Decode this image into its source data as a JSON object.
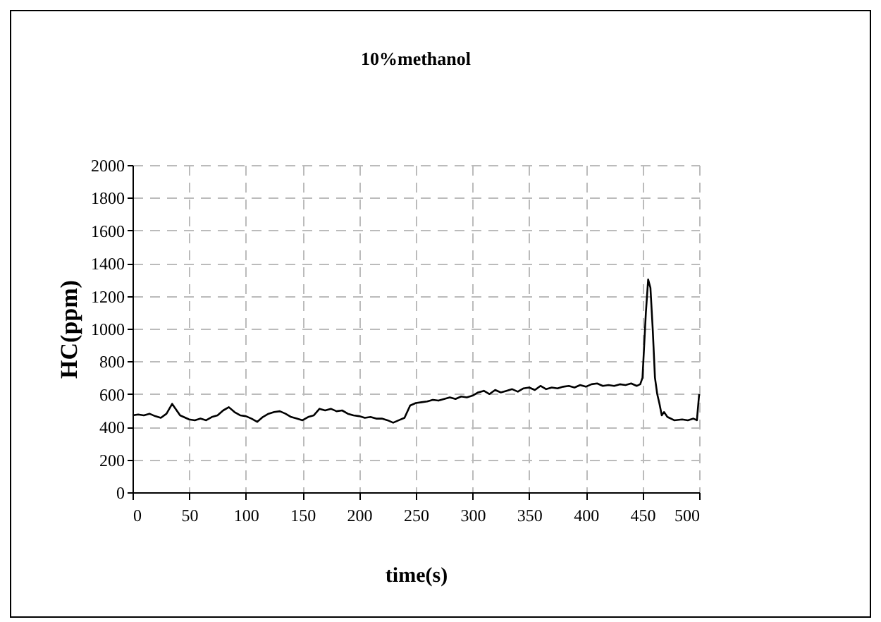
{
  "chart_data": {
    "type": "line",
    "title": "10%methanol",
    "xlabel": "time(s)",
    "ylabel": "HC(ppm)",
    "xlim": [
      0,
      500
    ],
    "xticks": [
      0,
      50,
      100,
      150,
      200,
      250,
      300,
      350,
      400,
      450,
      500
    ],
    "ylim": [
      0,
      2000
    ],
    "yticks": [
      0,
      200,
      400,
      600,
      800,
      1000,
      1200,
      1400,
      1600,
      1800,
      2000
    ],
    "grid": true,
    "legend": false,
    "marker": "none",
    "line_style": "solid",
    "series": [
      {
        "color": "#000000",
        "x": [
          0,
          5,
          10,
          15,
          20,
          25,
          30,
          35,
          38,
          42,
          50,
          55,
          60,
          65,
          70,
          75,
          80,
          85,
          90,
          95,
          100,
          105,
          110,
          115,
          120,
          125,
          130,
          135,
          140,
          145,
          150,
          155,
          160,
          165,
          170,
          175,
          180,
          185,
          190,
          195,
          200,
          205,
          210,
          215,
          220,
          225,
          230,
          235,
          240,
          245,
          250,
          255,
          260,
          265,
          270,
          275,
          280,
          285,
          290,
          295,
          300,
          305,
          310,
          315,
          320,
          325,
          330,
          335,
          340,
          345,
          350,
          355,
          360,
          365,
          370,
          375,
          380,
          385,
          390,
          395,
          400,
          405,
          410,
          415,
          420,
          425,
          430,
          435,
          440,
          445,
          448,
          450,
          453,
          455,
          457,
          459,
          461,
          463,
          465,
          467,
          469,
          472,
          478,
          485,
          490,
          495,
          498,
          500
        ],
        "values": [
          470,
          475,
          470,
          480,
          465,
          455,
          480,
          540,
          510,
          470,
          445,
          440,
          450,
          440,
          460,
          470,
          500,
          520,
          490,
          470,
          465,
          450,
          430,
          460,
          480,
          490,
          495,
          480,
          460,
          450,
          440,
          460,
          470,
          510,
          500,
          510,
          495,
          500,
          480,
          470,
          465,
          455,
          460,
          450,
          450,
          440,
          425,
          440,
          455,
          530,
          545,
          550,
          555,
          565,
          560,
          570,
          580,
          570,
          585,
          580,
          590,
          610,
          620,
          600,
          625,
          610,
          620,
          630,
          615,
          635,
          640,
          625,
          650,
          630,
          640,
          635,
          645,
          650,
          640,
          655,
          645,
          660,
          665,
          650,
          655,
          650,
          660,
          655,
          665,
          650,
          660,
          700,
          1100,
          1300,
          1250,
          1000,
          700,
          600,
          540,
          470,
          490,
          460,
          440,
          445,
          440,
          450,
          440,
          600
        ]
      }
    ]
  }
}
